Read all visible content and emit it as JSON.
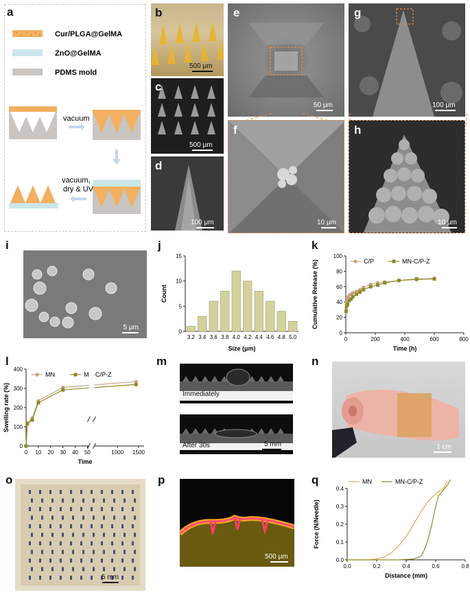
{
  "panels": {
    "a": "a",
    "b": "b",
    "c": "c",
    "d": "d",
    "e": "e",
    "f": "f",
    "g": "g",
    "h": "h",
    "i": "i",
    "j": "j",
    "k": "k",
    "l": "l",
    "m": "m",
    "n": "n",
    "o": "o",
    "p": "p",
    "q": "q"
  },
  "schematic": {
    "legend": [
      "Cur/PLGA@GelMA",
      "ZnO@GelMA",
      "PDMS mold"
    ],
    "step1": "vacuum",
    "step3_line1": "vacuum,",
    "step3_line2": "dry & UV"
  },
  "colors": {
    "cur": "#F0A050",
    "zno": "#CCE6EC",
    "pdms": "#C9C5C2",
    "accent": "#E58A45",
    "olive": "#8D8A2A",
    "tan": "#C8A47E",
    "hist": "#D3D29F"
  },
  "scalebars": {
    "b": "500 μm",
    "c": "500 μm",
    "d": "100 μm",
    "e": "50 μm",
    "f": "10 μm",
    "g": "100 μm",
    "h": "10 μm",
    "i": "5 μm",
    "m": "5 mm",
    "n": "1 cm",
    "o": "5 mm",
    "p": "500 μm"
  },
  "m_text": {
    "top": "Immediately",
    "bottom": "After 30s"
  },
  "chart_data": [
    {
      "type": "bar",
      "panel": "j",
      "categories": [
        "3.2",
        "3.4",
        "3.6",
        "3.8",
        "4.0",
        "4.2",
        "4.4",
        "4.6",
        "4.8",
        "5.0"
      ],
      "values": [
        1,
        3,
        6,
        8,
        12,
        10,
        8,
        6,
        4,
        2
      ],
      "xlabel": "Size (μm)",
      "ylabel": "Count",
      "ylim": [
        0,
        15
      ],
      "yticks": [
        0,
        5,
        10,
        15
      ]
    },
    {
      "type": "line",
      "panel": "k",
      "xlabel": "Time (h)",
      "ylabel": "Cumulative Release (%)",
      "xlim": [
        0,
        800
      ],
      "ylim": [
        0,
        100
      ],
      "xticks": [
        0,
        200,
        400,
        600,
        800
      ],
      "yticks": [
        0,
        20,
        40,
        60,
        80,
        100
      ],
      "legend": "top",
      "series": [
        {
          "name": "C/P",
          "x": [
            2,
            6,
            12,
            24,
            36,
            48,
            72,
            96,
            120,
            168,
            216,
            264,
            360,
            480,
            600
          ],
          "y": [
            32,
            40,
            46,
            49,
            50,
            52,
            54,
            56,
            59,
            63,
            65,
            66,
            68,
            69,
            71
          ]
        },
        {
          "name": "MN-C/P-Z",
          "x": [
            2,
            6,
            12,
            24,
            36,
            48,
            72,
            96,
            120,
            168,
            216,
            264,
            360,
            480,
            600
          ],
          "y": [
            28,
            35,
            37,
            42,
            44,
            47,
            50,
            53,
            56,
            60,
            62,
            65,
            68,
            70,
            70
          ]
        }
      ]
    },
    {
      "type": "line",
      "panel": "l",
      "xlabel": "Time",
      "ylabel": "Swelling rate (%)",
      "ylim": [
        0,
        400
      ],
      "yticks": [
        0,
        100,
        200,
        300,
        400
      ],
      "xticks": [
        "0",
        "10",
        "20",
        "30",
        "40",
        "50",
        "1000",
        "1500"
      ],
      "legend": "top",
      "series": [
        {
          "name": "MN",
          "x": [
            0,
            1,
            5,
            10,
            30,
            1440
          ],
          "y": [
            0,
            120,
            145,
            235,
            305,
            335
          ]
        },
        {
          "name": "MN-C/P-Z",
          "x": [
            0,
            1,
            5,
            10,
            30,
            1440
          ],
          "y": [
            0,
            115,
            135,
            225,
            292,
            320
          ]
        }
      ]
    },
    {
      "type": "line",
      "panel": "q",
      "xlabel": "Distance (mm)",
      "ylabel": "Force (N/Needle)",
      "xlim": [
        0,
        0.8
      ],
      "ylim": [
        0,
        0.4
      ],
      "xticks": [
        "0.0",
        "0.2",
        "0.4",
        "0.6",
        "0.8"
      ],
      "yticks": [
        "0.0",
        "0.1",
        "0.2",
        "0.3",
        "0.4"
      ],
      "legend": "top",
      "series": [
        {
          "name": "MN",
          "x": [
            0,
            0.15,
            0.2,
            0.25,
            0.3,
            0.35,
            0.4,
            0.45,
            0.5,
            0.55,
            0.6,
            0.65,
            0.68
          ],
          "y": [
            0,
            0,
            0.005,
            0.015,
            0.04,
            0.08,
            0.13,
            0.2,
            0.27,
            0.33,
            0.37,
            0.4,
            0.44
          ]
        },
        {
          "name": "MN-C/P-Z",
          "x": [
            0,
            0.35,
            0.45,
            0.5,
            0.52,
            0.55,
            0.58,
            0.6,
            0.62,
            0.65,
            0.68,
            0.7
          ],
          "y": [
            0,
            0,
            0.005,
            0.02,
            0.05,
            0.12,
            0.22,
            0.3,
            0.36,
            0.39,
            0.42,
            0.45
          ]
        }
      ]
    }
  ]
}
